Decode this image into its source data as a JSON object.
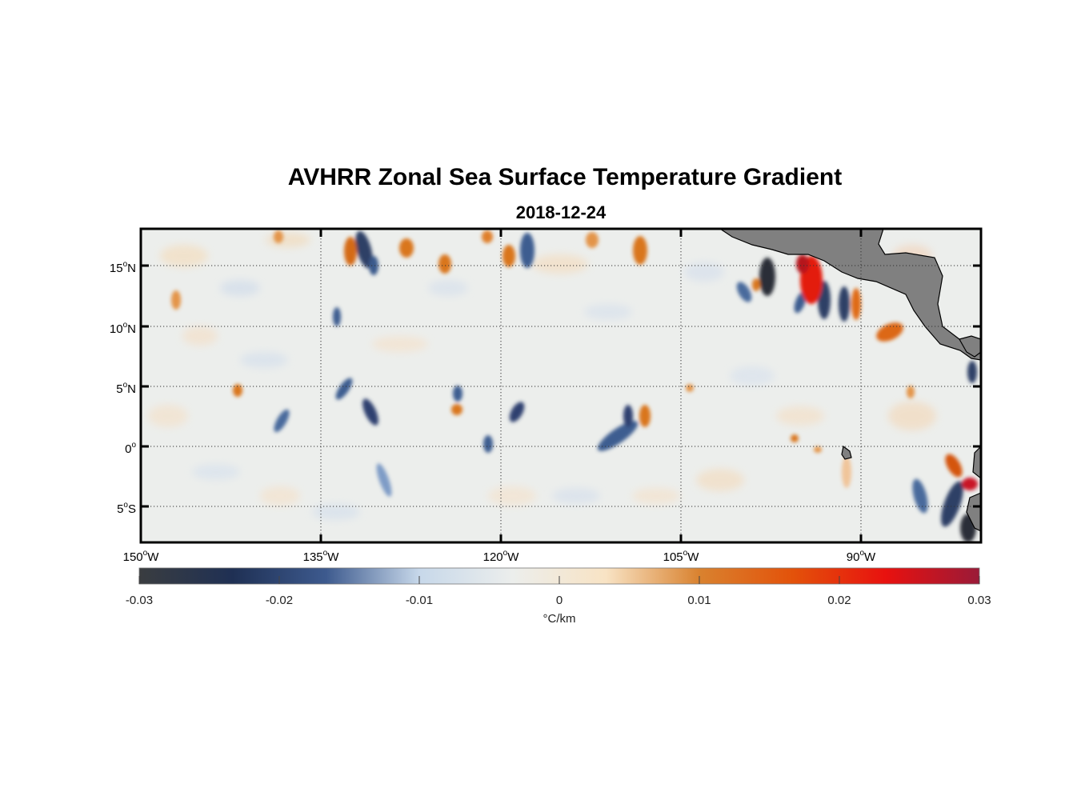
{
  "title": "AVHRR Zonal Sea Surface Temperature Gradient",
  "subtitle": "2018-12-24",
  "map": {
    "lon_range": [
      -150,
      -80
    ],
    "lat_range": [
      -8,
      18
    ],
    "lon_ticks": [
      {
        "value": -150,
        "deg": "150",
        "hemi": "W"
      },
      {
        "value": -135,
        "deg": "135",
        "hemi": "W"
      },
      {
        "value": -120,
        "deg": "120",
        "hemi": "W"
      },
      {
        "value": -105,
        "deg": "105",
        "hemi": "W"
      },
      {
        "value": -90,
        "deg": "90",
        "hemi": "W"
      }
    ],
    "lat_ticks": [
      {
        "value": 15,
        "deg": "15",
        "hemi": "N"
      },
      {
        "value": 10,
        "deg": "10",
        "hemi": "N"
      },
      {
        "value": 5,
        "deg": "5",
        "hemi": "N"
      },
      {
        "value": 0,
        "deg": "0",
        "hemi": ""
      },
      {
        "value": -5,
        "deg": "5",
        "hemi": "S"
      }
    ],
    "grid": "dotted",
    "land_color": "#808080",
    "ocean_background": "#eceeec"
  },
  "colorbar": {
    "ticks": [
      "-0.03",
      "-0.02",
      "-0.01",
      "0",
      "0.01",
      "0.02",
      "0.03"
    ],
    "unit": "°C/km",
    "range": [
      -0.03,
      0.03
    ],
    "colors": [
      "#3a3d40",
      "#1f3054",
      "#3d5a8e",
      "#c7d8ea",
      "#eceeec",
      "#f8e3c4",
      "#d9822f",
      "#e3520a",
      "#e8110f",
      "#9a1a38"
    ]
  }
}
